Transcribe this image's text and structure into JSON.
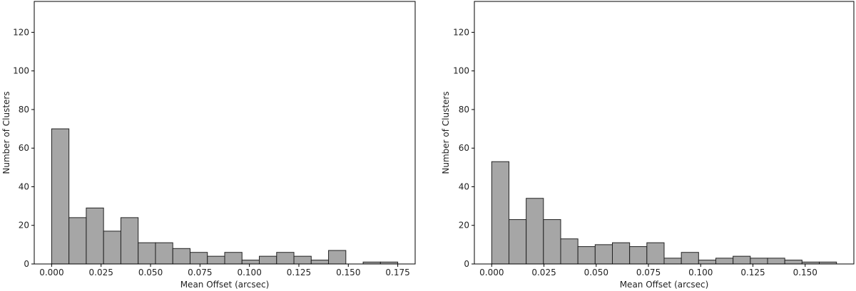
{
  "chart_data": [
    {
      "type": "bar",
      "xlabel": "Mean Offset (arcsec)",
      "ylabel": "Number of Clusters",
      "xlim": [
        -0.0088,
        0.1838
      ],
      "ylim": [
        0,
        136
      ],
      "xticks": [
        0.0,
        0.025,
        0.05,
        0.075,
        0.1,
        0.125,
        0.15,
        0.175
      ],
      "xtick_labels": [
        "0.000",
        "0.025",
        "0.050",
        "0.075",
        "0.100",
        "0.125",
        "0.150",
        "0.175"
      ],
      "yticks": [
        0,
        20,
        40,
        60,
        80,
        100,
        120
      ],
      "ytick_labels": [
        "0",
        "20",
        "40",
        "60",
        "80",
        "100",
        "120"
      ],
      "bin_edges": [
        0.0,
        0.00875,
        0.0175,
        0.02625,
        0.035,
        0.04375,
        0.0525,
        0.06125,
        0.07,
        0.07875,
        0.0875,
        0.09625,
        0.105,
        0.11375,
        0.1225,
        0.13125,
        0.14,
        0.14875,
        0.1575,
        0.16625,
        0.175
      ],
      "values": [
        70,
        24,
        29,
        17,
        24,
        11,
        11,
        8,
        6,
        4,
        6,
        2,
        4,
        6,
        4,
        2,
        7,
        0,
        1,
        1
      ],
      "bar_color": "#a6a6a6",
      "edge_color": "#222222",
      "grid": false
    },
    {
      "type": "bar",
      "xlabel": "Mean Offset (arcsec)",
      "ylabel": "Number of Clusters",
      "xlim": [
        -0.0083,
        0.1733
      ],
      "ylim": [
        0,
        136
      ],
      "xticks": [
        0.0,
        0.025,
        0.05,
        0.075,
        0.1,
        0.125,
        0.15
      ],
      "xtick_labels": [
        "0.000",
        "0.025",
        "0.050",
        "0.075",
        "0.100",
        "0.125",
        "0.150"
      ],
      "yticks": [
        0,
        20,
        40,
        60,
        80,
        100,
        120
      ],
      "ytick_labels": [
        "0",
        "20",
        "40",
        "60",
        "80",
        "100",
        "120"
      ],
      "bin_edges": [
        0.0,
        0.00825,
        0.0165,
        0.02475,
        0.033,
        0.04125,
        0.0495,
        0.05775,
        0.066,
        0.07425,
        0.0825,
        0.09075,
        0.099,
        0.10725,
        0.1155,
        0.12375,
        0.132,
        0.14025,
        0.1485,
        0.15675,
        0.165
      ],
      "values": [
        53,
        23,
        34,
        23,
        13,
        9,
        10,
        11,
        9,
        11,
        3,
        6,
        2,
        3,
        4,
        3,
        3,
        2,
        1,
        1
      ],
      "bar_color": "#a6a6a6",
      "edge_color": "#222222",
      "grid": false
    }
  ]
}
